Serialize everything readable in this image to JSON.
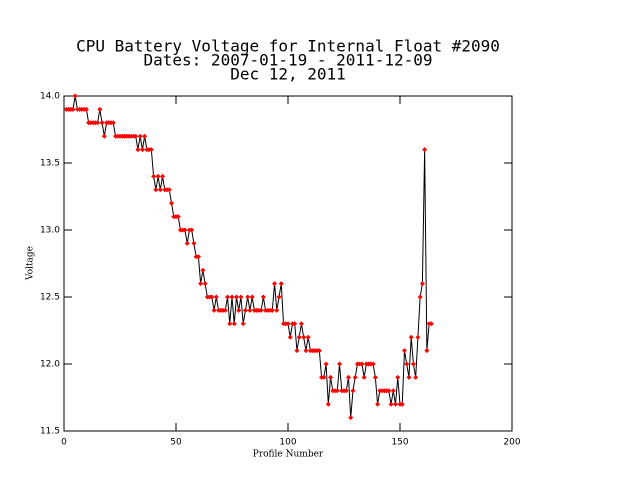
{
  "chart_data": {
    "type": "line",
    "title": [
      "CPU Battery Voltage for Internal Float #2090",
      "Dates:  2007-01-19 -  2011-12-09",
      "Dec 12, 2011"
    ],
    "x_label": "Profile Number",
    "y_label": "Voltage",
    "xlim": [
      0,
      200
    ],
    "xticks": [
      0,
      50,
      100,
      150,
      200
    ],
    "ylim": [
      11.5,
      14.0
    ],
    "yticks": [
      11.5,
      {
        "value": 12,
        "label": "12.0"
      },
      12.5,
      {
        "value": 13,
        "label": "13.0"
      },
      13.5,
      {
        "value": 14,
        "label": "14.0"
      }
    ],
    "series": [
      {
        "name": "Voltage",
        "color": "#ff0000",
        "line_color": "#000000",
        "x": [
          1,
          2,
          3,
          4,
          5,
          6,
          7,
          8,
          9,
          10,
          11,
          12,
          13,
          14,
          15,
          16,
          17,
          18,
          19,
          20,
          21,
          22,
          23,
          24,
          25,
          26,
          27,
          28,
          29,
          30,
          31,
          32,
          33,
          34,
          35,
          36,
          37,
          38,
          39,
          40,
          41,
          42,
          43,
          44,
          45,
          46,
          47,
          48,
          49,
          50,
          51,
          52,
          53,
          54,
          55,
          56,
          57,
          58,
          59,
          60,
          61,
          62,
          63,
          64,
          65,
          66,
          67,
          68,
          69,
          70,
          71,
          72,
          73,
          74,
          75,
          76,
          77,
          78,
          79,
          80,
          81,
          82,
          83,
          84,
          85,
          86,
          87,
          88,
          89,
          90,
          91,
          92,
          93,
          94,
          95,
          96,
          97,
          98,
          99,
          100,
          101,
          102,
          103,
          104,
          105,
          106,
          107,
          108,
          109,
          110,
          111,
          112,
          113,
          114,
          115,
          116,
          117,
          118,
          119,
          120,
          121,
          122,
          123,
          124,
          125,
          126,
          127,
          128,
          129,
          130,
          131,
          132,
          133,
          134,
          135,
          136,
          137,
          138,
          139,
          140,
          141,
          142,
          143,
          144,
          145,
          146,
          147,
          148,
          149,
          150,
          151,
          152,
          153,
          154,
          155,
          156,
          157,
          158,
          159,
          160,
          161,
          162,
          163,
          164
        ],
        "values": [
          13.9,
          13.9,
          13.9,
          13.9,
          14.0,
          13.9,
          13.9,
          13.9,
          13.9,
          13.9,
          13.8,
          13.8,
          13.8,
          13.8,
          13.8,
          13.9,
          13.8,
          13.7,
          13.8,
          13.8,
          13.8,
          13.8,
          13.7,
          13.7,
          13.7,
          13.7,
          13.7,
          13.7,
          13.7,
          13.7,
          13.7,
          13.7,
          13.6,
          13.7,
          13.6,
          13.7,
          13.6,
          13.6,
          13.6,
          13.4,
          13.3,
          13.4,
          13.3,
          13.4,
          13.3,
          13.3,
          13.3,
          13.2,
          13.1,
          13.1,
          13.1,
          13.0,
          13.0,
          13.0,
          12.9,
          13.0,
          13.0,
          12.9,
          12.8,
          12.8,
          12.6,
          12.7,
          12.6,
          12.5,
          12.5,
          12.5,
          12.4,
          12.5,
          12.4,
          12.4,
          12.4,
          12.4,
          12.5,
          12.3,
          12.5,
          12.3,
          12.5,
          12.4,
          12.5,
          12.3,
          12.4,
          12.5,
          12.4,
          12.5,
          12.4,
          12.4,
          12.4,
          12.4,
          12.5,
          12.4,
          12.4,
          12.4,
          12.4,
          12.6,
          12.4,
          12.5,
          12.6,
          12.3,
          12.3,
          12.3,
          12.2,
          12.3,
          12.3,
          12.1,
          12.2,
          12.3,
          12.2,
          12.1,
          12.2,
          12.1,
          12.1,
          12.1,
          12.1,
          12.1,
          11.9,
          11.9,
          12.0,
          11.7,
          11.9,
          11.8,
          11.8,
          11.8,
          12.0,
          11.8,
          11.8,
          11.8,
          11.9,
          11.6,
          11.8,
          11.9,
          12.0,
          12.0,
          12.0,
          11.9,
          12.0,
          12.0,
          12.0,
          12.0,
          11.9,
          11.7,
          11.8,
          11.8,
          11.8,
          11.8,
          11.8,
          11.7,
          11.8,
          11.7,
          11.9,
          11.7,
          11.7,
          12.1,
          12.0,
          11.9,
          12.2,
          12.0,
          11.9,
          12.2,
          12.5,
          12.6,
          13.6,
          12.1,
          12.3,
          12.3
        ]
      }
    ]
  }
}
